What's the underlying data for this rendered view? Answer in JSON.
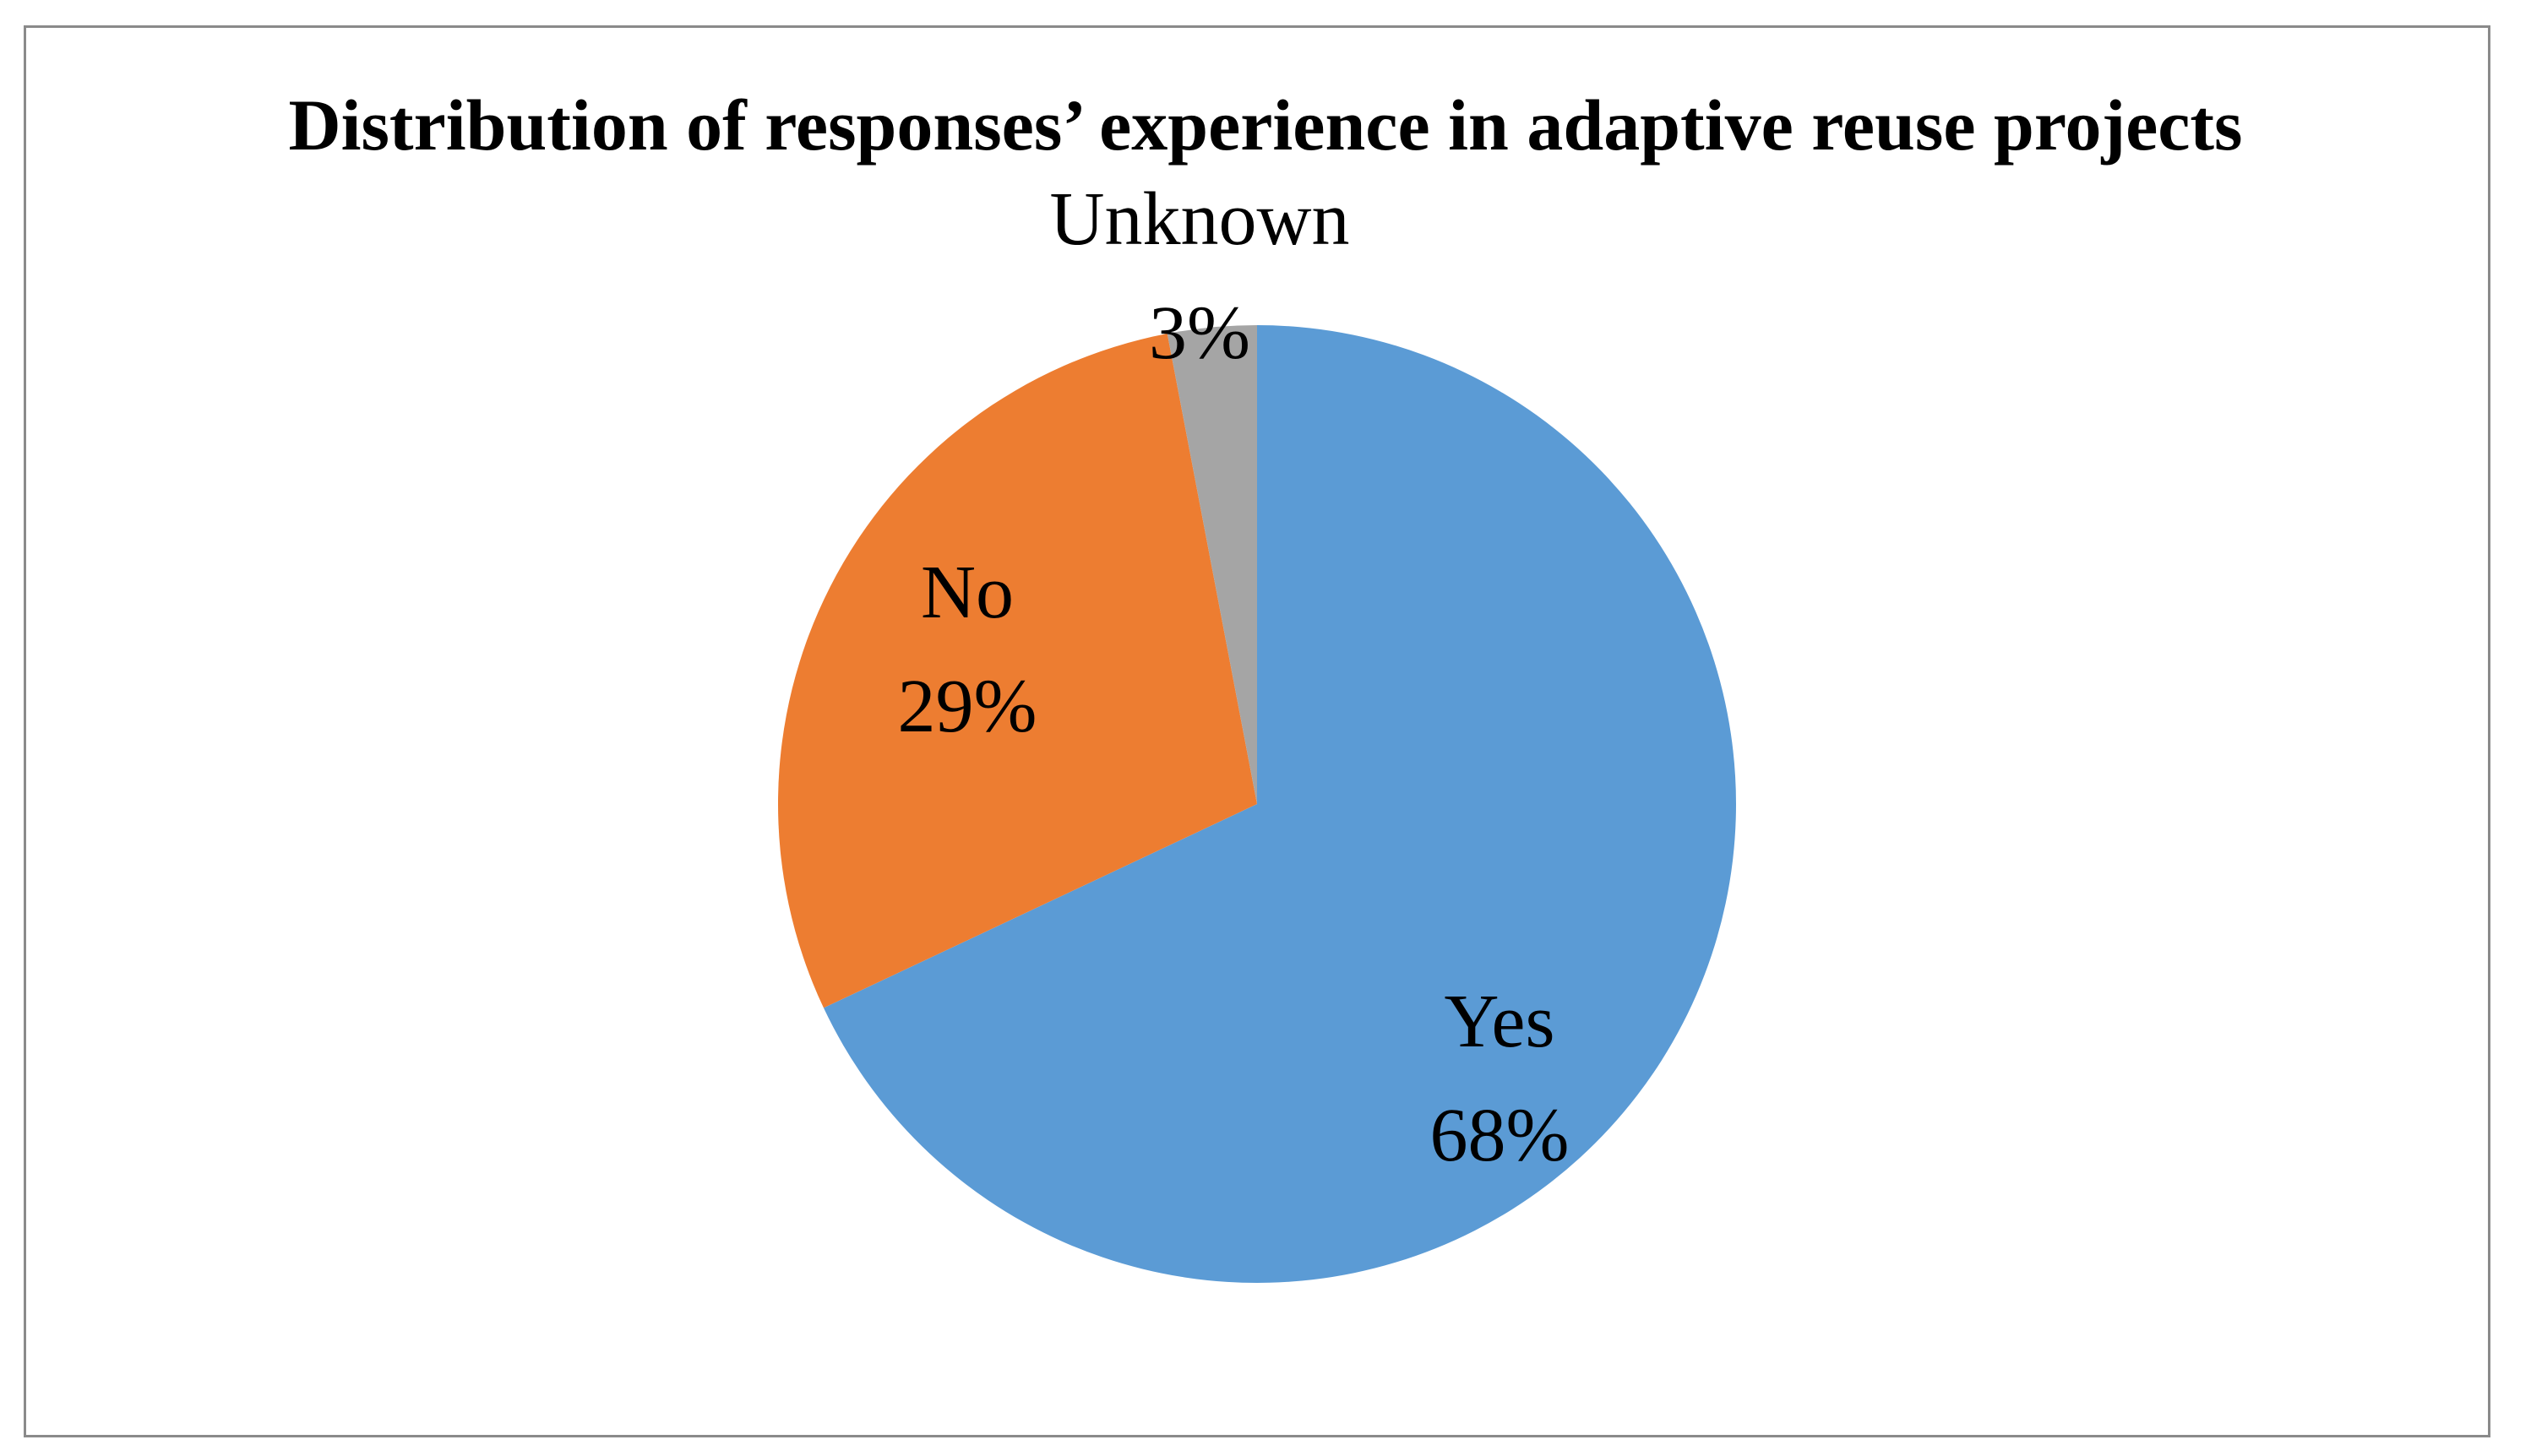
{
  "figure": {
    "background_color": "#FFFFFF",
    "frame_color": "#8A8A8A"
  },
  "chart_data": {
    "type": "pie",
    "title": "Distribution of responses’ experience in adaptive reuse projects",
    "legend": "none",
    "data_label_style": "category name and percentage on two lines",
    "start_angle_deg": 0,
    "direction": "clockwise",
    "slices": [
      {
        "label": "Yes",
        "value": 68,
        "pct_label": "68%",
        "color": "#5B9BD5",
        "label_placement": "inside"
      },
      {
        "label": "No",
        "value": 29,
        "pct_label": "29%",
        "color": "#ED7D31",
        "label_placement": "inside"
      },
      {
        "label": "Unknown",
        "value": 3,
        "pct_label": "3%",
        "color": "#A5A5A5",
        "label_placement": "outside-top"
      }
    ]
  }
}
